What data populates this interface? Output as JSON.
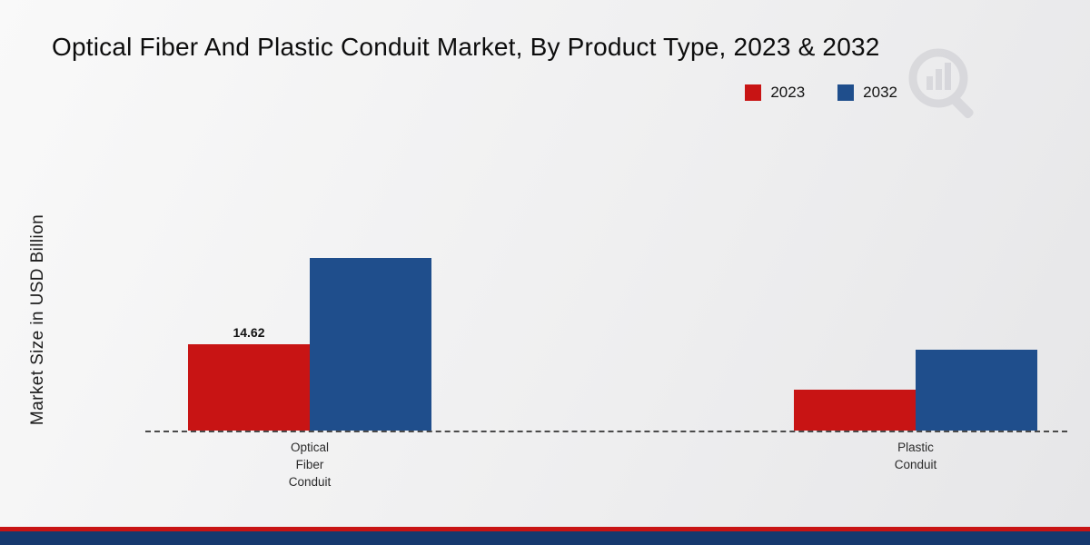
{
  "chart_data": {
    "type": "bar",
    "title": "Optical Fiber And Plastic Conduit Market, By Product Type, 2023 & 2032",
    "xlabel": "",
    "ylabel": "Market Size in USD Billion",
    "categories": [
      "Optical Fiber Conduit",
      "Plastic Conduit"
    ],
    "series": [
      {
        "name": "2023",
        "color": "#c81414",
        "values": [
          14.62,
          6.9
        ]
      },
      {
        "name": "2032",
        "color": "#1f4e8c",
        "values": [
          29.2,
          13.7
        ]
      }
    ],
    "annotations": [
      {
        "series_index": 0,
        "category_index": 0,
        "text": "14.62"
      }
    ],
    "ylim": [
      0,
      49
    ],
    "grid": false,
    "baseline_style": "dashed",
    "legend_position": "top-right"
  },
  "footer": {
    "red_color": "#c81414",
    "navy_color": "#16396e"
  }
}
